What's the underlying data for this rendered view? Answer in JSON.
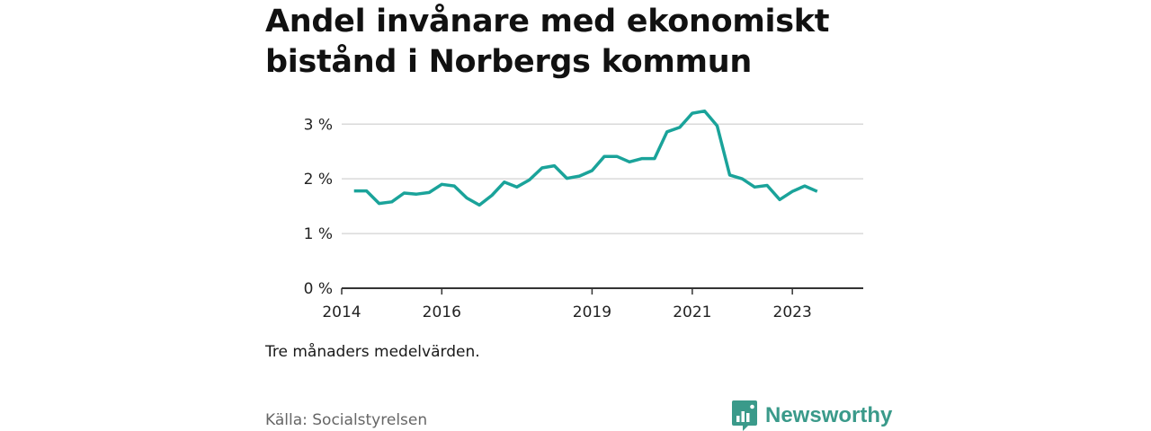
{
  "title": "Andel invånare med ekonomiskt bistånd i Norbergs kommun",
  "note": "Tre månaders medelvärden.",
  "source": "Källa: Socialstyrelsen",
  "brand": {
    "name": "Newsworthy",
    "icon": "newsworthy-logo-icon",
    "color": "#3a9a8a"
  },
  "colors": {
    "line": "#1aa39a",
    "grid": "#d9d9d9",
    "axis": "#333333"
  },
  "chart_data": {
    "type": "line",
    "x_type": "date",
    "xlim": [
      "2014-01-01",
      "2024-06-01"
    ],
    "ylim": [
      0,
      3.3
    ],
    "y_ticks": [
      0,
      1,
      2,
      3
    ],
    "y_tick_labels": [
      "0 %",
      "1 %",
      "2 %",
      "3 %"
    ],
    "x_ticks": [
      "2014-01-01",
      "2016-01-01",
      "2019-01-01",
      "2021-01-01",
      "2023-01-01"
    ],
    "x_tick_labels": [
      "2014",
      "2016",
      "2019",
      "2021",
      "2023"
    ],
    "grid": true,
    "series": [
      {
        "points": [
          [
            "2014-04-01",
            1.78
          ],
          [
            "2014-07-01",
            1.78
          ],
          [
            "2014-10-01",
            1.55
          ],
          [
            "2015-01-01",
            1.58
          ],
          [
            "2015-04-01",
            1.74
          ],
          [
            "2015-07-01",
            1.72
          ],
          [
            "2015-10-01",
            1.75
          ],
          [
            "2016-01-01",
            1.9
          ],
          [
            "2016-04-01",
            1.87
          ],
          [
            "2016-07-01",
            1.65
          ],
          [
            "2016-10-01",
            1.52
          ],
          [
            "2017-01-01",
            1.7
          ],
          [
            "2017-04-01",
            1.94
          ],
          [
            "2017-07-01",
            1.85
          ],
          [
            "2017-10-01",
            1.98
          ],
          [
            "2018-01-01",
            2.2
          ],
          [
            "2018-04-01",
            2.24
          ],
          [
            "2018-07-01",
            2.01
          ],
          [
            "2018-10-01",
            2.05
          ],
          [
            "2019-01-01",
            2.15
          ],
          [
            "2019-04-01",
            2.41
          ],
          [
            "2019-07-01",
            2.41
          ],
          [
            "2019-10-01",
            2.31
          ],
          [
            "2020-01-01",
            2.37
          ],
          [
            "2020-04-01",
            2.37
          ],
          [
            "2020-07-01",
            2.86
          ],
          [
            "2020-10-01",
            2.94
          ],
          [
            "2021-01-01",
            3.2
          ],
          [
            "2021-04-01",
            3.24
          ],
          [
            "2021-07-01",
            2.97
          ],
          [
            "2021-10-01",
            2.07
          ],
          [
            "2022-01-01",
            2.0
          ],
          [
            "2022-04-01",
            1.85
          ],
          [
            "2022-07-01",
            1.88
          ],
          [
            "2022-10-01",
            1.62
          ],
          [
            "2023-01-01",
            1.77
          ],
          [
            "2023-04-01",
            1.87
          ],
          [
            "2023-07-01",
            1.77
          ]
        ]
      }
    ]
  }
}
